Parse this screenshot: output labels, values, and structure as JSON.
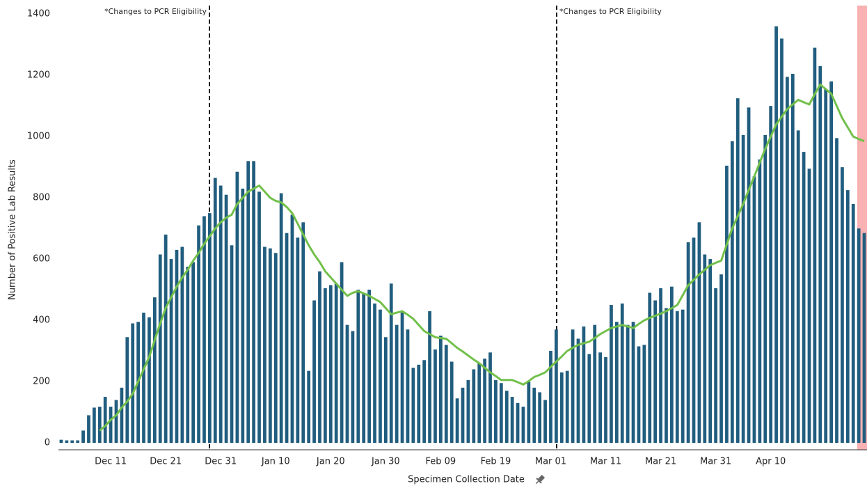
{
  "chart_data": {
    "type": "bar",
    "x_label": "Specimen Collection Date",
    "y_label": "Number of Positive Lab Results",
    "annotations": [
      "*Changes to PCR Eligibility",
      "*Changes to PCR Eligibility"
    ],
    "categories": [
      null,
      null,
      null,
      null,
      null,
      null,
      null,
      null,
      null,
      "Dec 11",
      null,
      null,
      null,
      null,
      null,
      null,
      null,
      null,
      null,
      "Dec 21",
      null,
      null,
      null,
      null,
      null,
      null,
      null,
      null,
      null,
      "Dec 31",
      null,
      null,
      null,
      null,
      null,
      null,
      null,
      null,
      null,
      "Jan 10",
      null,
      null,
      null,
      null,
      null,
      null,
      null,
      null,
      null,
      "Jan 20",
      null,
      null,
      null,
      null,
      null,
      null,
      null,
      null,
      null,
      "Jan 30",
      null,
      null,
      null,
      null,
      null,
      null,
      null,
      null,
      null,
      "Feb 09",
      null,
      null,
      null,
      null,
      null,
      null,
      null,
      null,
      null,
      "Feb 19",
      null,
      null,
      null,
      null,
      null,
      null,
      null,
      null,
      null,
      "Mar 01",
      null,
      null,
      null,
      null,
      null,
      null,
      null,
      null,
      null,
      "Mar 11",
      null,
      null,
      null,
      null,
      null,
      null,
      null,
      null,
      null,
      "Mar 21",
      null,
      null,
      null,
      null,
      null,
      null,
      null,
      null,
      null,
      "Mar 31",
      null,
      null,
      null,
      null,
      null,
      null,
      null,
      null,
      null,
      "Apr 10",
      null,
      null,
      null,
      null,
      null,
      null,
      null,
      null,
      null,
      null,
      null,
      null,
      null,
      null,
      null,
      null,
      null
    ],
    "series": [
      {
        "type": "bar",
        "color": "#215d7e",
        "values": [
          10,
          8,
          8,
          8,
          40,
          90,
          115,
          118,
          150,
          118,
          140,
          180,
          345,
          390,
          395,
          425,
          410,
          475,
          615,
          680,
          600,
          630,
          640,
          575,
          590,
          710,
          740,
          750,
          865,
          840,
          810,
          645,
          885,
          830,
          920,
          920,
          820,
          640,
          635,
          620,
          815,
          685,
          745,
          670,
          720,
          235,
          465,
          560,
          505,
          515,
          520,
          590,
          385,
          365,
          500,
          490,
          500,
          455,
          435,
          345,
          520,
          385,
          425,
          370,
          245,
          255,
          270,
          430,
          305,
          350,
          320,
          265,
          145,
          180,
          205,
          240,
          260,
          275,
          295,
          205,
          195,
          170,
          150,
          130,
          118,
          200,
          180,
          165,
          140,
          300,
          370,
          230,
          235,
          370,
          340,
          380,
          290,
          385,
          295,
          280,
          450,
          395,
          455,
          385,
          395,
          315,
          320,
          490,
          465,
          505,
          440,
          510,
          430,
          435,
          655,
          670,
          720,
          615,
          600,
          505,
          550,
          905,
          985,
          1125,
          1005,
          1095,
          870,
          925,
          1005,
          1100,
          1360,
          1320,
          1195,
          1205,
          1020,
          950,
          895,
          1290,
          1230,
          1155,
          1180,
          995,
          900,
          825,
          780,
          700,
          685
        ]
      },
      {
        "type": "line",
        "color": "#72c04a",
        "values": [
          null,
          null,
          null,
          null,
          null,
          null,
          null,
          40,
          55,
          75,
          90,
          115,
          135,
          160,
          200,
          240,
          280,
          335,
          390,
          440,
          475,
          510,
          540,
          565,
          595,
          620,
          650,
          675,
          700,
          720,
          735,
          745,
          780,
          800,
          820,
          830,
          840,
          820,
          800,
          790,
          785,
          770,
          750,
          715,
          680,
          645,
          615,
          590,
          560,
          540,
          520,
          500,
          480,
          490,
          495,
          488,
          480,
          470,
          460,
          440,
          420,
          425,
          430,
          418,
          405,
          385,
          365,
          355,
          345,
          342,
          340,
          325,
          310,
          298,
          285,
          272,
          260,
          245,
          230,
          218,
          205,
          205,
          205,
          198,
          190,
          202,
          215,
          222,
          230,
          248,
          265,
          282,
          300,
          310,
          320,
          325,
          330,
          342,
          355,
          365,
          375,
          380,
          385,
          380,
          375,
          388,
          400,
          408,
          415,
          422,
          430,
          440,
          450,
          482,
          515,
          532,
          550,
          565,
          580,
          588,
          595,
          648,
          700,
          740,
          780,
          825,
          870,
          915,
          960,
          1000,
          1040,
          1065,
          1090,
          1105,
          1120,
          1112,
          1105,
          1138,
          1170,
          1155,
          1140,
          1100,
          1060,
          1030,
          1000,
          992,
          985
        ]
      }
    ],
    "ylim": [
      -25,
      1430
    ],
    "yticks": [
      0,
      200,
      400,
      600,
      800,
      1000,
      1200,
      1400
    ],
    "grid": false
  }
}
